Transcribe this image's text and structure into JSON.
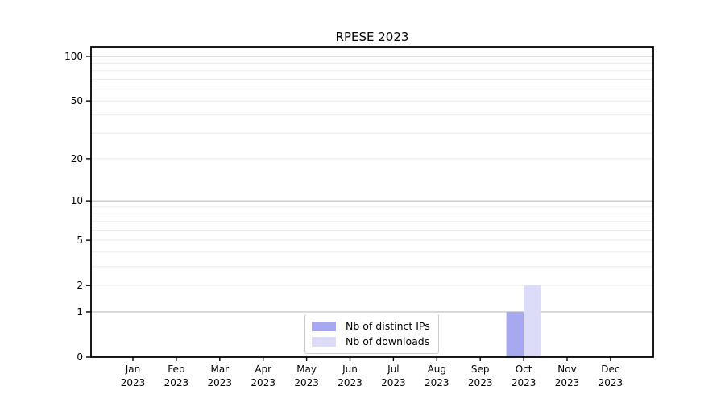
{
  "chart_data": {
    "type": "bar",
    "title": "RPESE 2023",
    "categories": [
      "Jan",
      "Feb",
      "Mar",
      "Apr",
      "May",
      "Jun",
      "Jul",
      "Aug",
      "Sep",
      "Oct",
      "Nov",
      "Dec"
    ],
    "x_tick_year": "2023",
    "series": [
      {
        "name": "Nb of distinct IPs",
        "color": "#a8a8f0",
        "values": [
          0,
          0,
          0,
          0,
          0,
          0,
          0,
          0,
          0,
          1,
          0,
          0
        ]
      },
      {
        "name": "Nb of downloads",
        "color": "#dcdcf8",
        "values": [
          0,
          0,
          0,
          0,
          0,
          0,
          0,
          0,
          0,
          2,
          0,
          0
        ]
      }
    ],
    "y_ticks": [
      0,
      1,
      2,
      5,
      10,
      20,
      50,
      100
    ],
    "y_minor_gridlines": [
      2,
      3,
      4,
      5,
      6,
      7,
      8,
      9,
      20,
      30,
      40,
      50,
      60,
      70,
      80,
      90
    ],
    "y_major_gridlines": [
      1,
      10,
      100
    ],
    "y_scale": "log1p",
    "ylim": [
      0,
      116
    ],
    "xlabel": "",
    "ylabel": "",
    "grid": "horizontal",
    "legend_position": "bottom-center-inside",
    "colors": {
      "major_gridline": "#bdbdbd",
      "minor_gridline": "#ebebeb",
      "spine": "#000000",
      "background": "#ffffff"
    }
  }
}
